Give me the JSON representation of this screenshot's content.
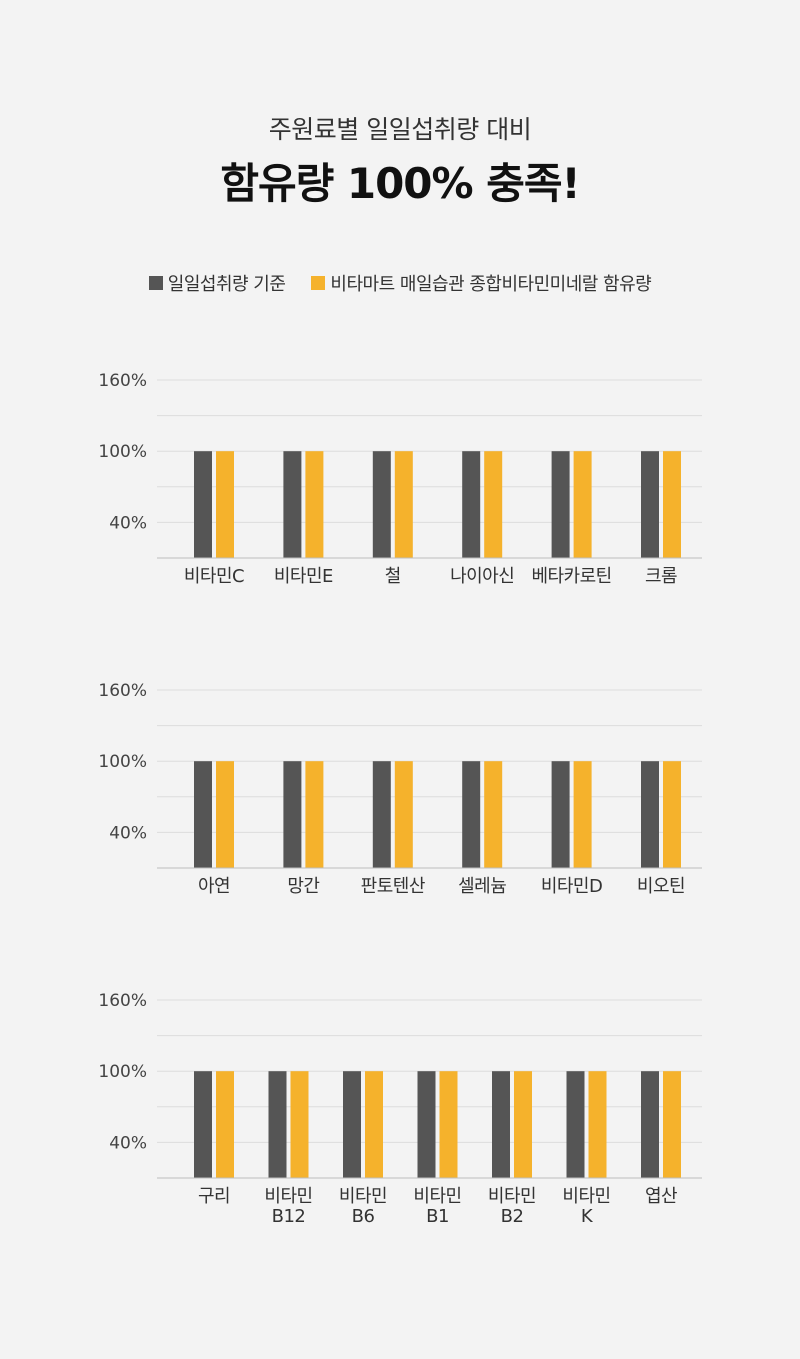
{
  "header": {
    "subtitle": "주원료별 일일섭취량 대비",
    "title": "함유량 100% 충족!"
  },
  "legend": {
    "items": [
      {
        "label": "일일섭취량 기준",
        "color": "#555555"
      },
      {
        "label": "비타마트 매일습관 종합비타민미네랄 함유량",
        "color": "#f5b22c"
      }
    ]
  },
  "chart_data": [
    {
      "type": "bar",
      "categories": [
        [
          "비타민C"
        ],
        [
          "비타민E"
        ],
        [
          "철"
        ],
        [
          "나이아신"
        ],
        [
          "베타카로틴"
        ],
        [
          "크롬"
        ]
      ],
      "series": [
        {
          "name": "일일섭취량 기준",
          "values": [
            100,
            100,
            100,
            100,
            100,
            100
          ],
          "color": "#555555"
        },
        {
          "name": "비타마트 매일습관 종합비타민미네랄 함유량",
          "values": [
            100,
            100,
            100,
            100,
            100,
            100
          ],
          "color": "#f5b22c"
        }
      ],
      "yticks": [
        {
          "value": 160,
          "label": "160%"
        },
        {
          "value": 100,
          "label": "100%"
        },
        {
          "value": 40,
          "label": "40%"
        }
      ],
      "gridlines": [
        160,
        130,
        100,
        70,
        40
      ],
      "ylim": [
        10,
        160
      ]
    },
    {
      "type": "bar",
      "categories": [
        [
          "아연"
        ],
        [
          "망간"
        ],
        [
          "판토텐산"
        ],
        [
          "셀레늄"
        ],
        [
          "비타민D"
        ],
        [
          "비오틴"
        ]
      ],
      "series": [
        {
          "name": "일일섭취량 기준",
          "values": [
            100,
            100,
            100,
            100,
            100,
            100
          ],
          "color": "#555555"
        },
        {
          "name": "비타마트 매일습관 종합비타민미네랄 함유량",
          "values": [
            100,
            100,
            100,
            100,
            100,
            100
          ],
          "color": "#f5b22c"
        }
      ],
      "yticks": [
        {
          "value": 160,
          "label": "160%"
        },
        {
          "value": 100,
          "label": "100%"
        },
        {
          "value": 40,
          "label": "40%"
        }
      ],
      "gridlines": [
        160,
        130,
        100,
        70,
        40
      ],
      "ylim": [
        10,
        160
      ]
    },
    {
      "type": "bar",
      "categories": [
        [
          "구리"
        ],
        [
          "비타민",
          "B12"
        ],
        [
          "비타민",
          "B6"
        ],
        [
          "비타민",
          "B1"
        ],
        [
          "비타민",
          "B2"
        ],
        [
          "비타민",
          "K"
        ],
        [
          "엽산"
        ]
      ],
      "series": [
        {
          "name": "일일섭취량 기준",
          "values": [
            100,
            100,
            100,
            100,
            100,
            100,
            100
          ],
          "color": "#555555"
        },
        {
          "name": "비타마트 매일습관 종합비타민미네랄 함유량",
          "values": [
            100,
            100,
            100,
            100,
            100,
            100,
            100
          ],
          "color": "#f5b22c"
        }
      ],
      "yticks": [
        {
          "value": 160,
          "label": "160%"
        },
        {
          "value": 100,
          "label": "100%"
        },
        {
          "value": 40,
          "label": "40%"
        }
      ],
      "gridlines": [
        160,
        130,
        100,
        70,
        40
      ],
      "ylim": [
        10,
        160
      ]
    }
  ]
}
